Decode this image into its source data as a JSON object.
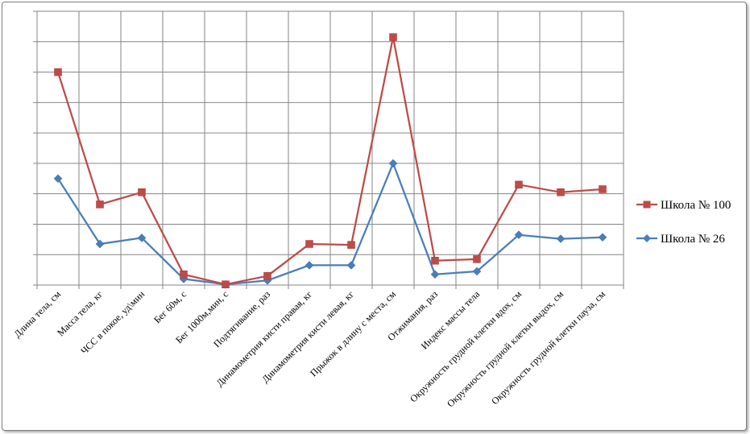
{
  "chart_data": {
    "type": "line",
    "categories": [
      "Длина тела, см",
      "Масса тела, кг",
      "ЧСС в покое, уд\\мин",
      "Бег 60м, с",
      "Бег 1000м,мин, с",
      "Подтягивание, раз",
      "Динамометрия кисти правая, кг",
      "Динамометрия кисти левая, кг",
      "Прыжок в длину с места, см",
      "Отжимания, раз",
      "Индекс массы тела",
      "Окружность грудной клетки вдох, см",
      "Окружность грудной клетки выдох, см",
      "Окружность грудной клетки пауза, см"
    ],
    "series": [
      {
        "name": "Школа № 100",
        "color": "#be4b48",
        "marker": "square",
        "values": [
          70,
          26.5,
          30.5,
          3.5,
          0.2,
          3,
          13.5,
          13.2,
          81.5,
          8,
          8.5,
          33,
          30.5,
          31.5
        ]
      },
      {
        "name": "Школа № 26",
        "color": "#4a7ebb",
        "marker": "diamond",
        "values": [
          35,
          13.5,
          15.5,
          2,
          0.2,
          1.5,
          6.5,
          6.5,
          40,
          3.5,
          4.5,
          16.5,
          15.2,
          15.7
        ]
      }
    ],
    "ylim": [
      0,
      90
    ],
    "grid": true,
    "y_tick_labels_visible": false,
    "legend_position": "right"
  }
}
